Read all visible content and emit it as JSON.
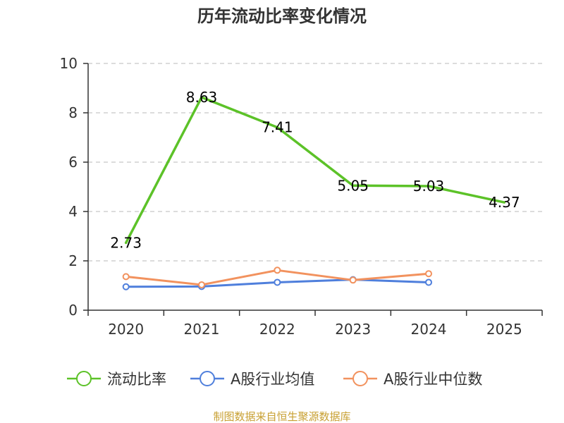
{
  "chart_data": {
    "type": "line",
    "title": "历年流动比率变化情况",
    "categories": [
      "2020",
      "2021",
      "2022",
      "2023",
      "2024",
      "2025"
    ],
    "yticks": [
      "0",
      "2",
      "4",
      "6",
      "8",
      "10"
    ],
    "ylim": [
      0,
      10
    ],
    "grid": true,
    "legend_position": "bottom",
    "series": [
      {
        "name": "流动比率",
        "color": "#5cc228",
        "values": [
          2.73,
          8.63,
          7.41,
          5.05,
          5.03,
          4.37
        ],
        "labels": [
          "2.73",
          "8.63",
          "7.41",
          "5.05",
          "5.03",
          "4.37"
        ],
        "show_labels": true,
        "show_markers": false
      },
      {
        "name": "A股行业均值",
        "color": "#4f7fdc",
        "values": [
          0.95,
          0.96,
          1.13,
          1.24,
          1.13,
          null
        ],
        "show_labels": false,
        "show_markers": true
      },
      {
        "name": "A股行业中位数",
        "color": "#f2925e",
        "values": [
          1.36,
          1.03,
          1.62,
          1.22,
          1.48,
          null
        ],
        "show_labels": false,
        "show_markers": true
      }
    ],
    "source": "制图数据来自恒生聚源数据库"
  }
}
